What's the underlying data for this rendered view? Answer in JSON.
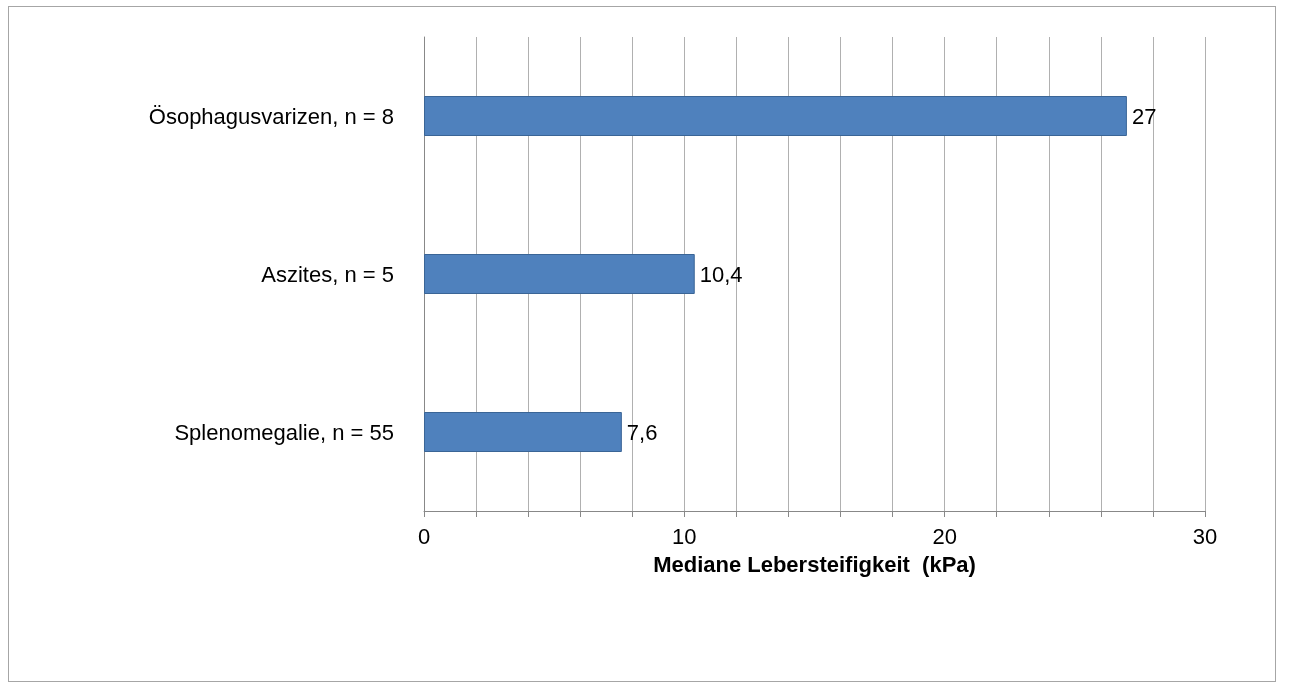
{
  "chart_data": {
    "type": "bar",
    "orientation": "horizontal",
    "categories": [
      "Ösophagusvarizen, n = 8",
      "Aszites, n = 5",
      "Splenomegalie, n = 55"
    ],
    "values": [
      27,
      10.4,
      7.6
    ],
    "value_labels": [
      "27",
      "10,4",
      "7,6"
    ],
    "color": "#4f81bd",
    "xlabel": "Mediane Lebersteifigkeit  (kPa)",
    "xlim": [
      0,
      30
    ],
    "xticks": [
      0,
      {
        "value": 2,
        "label": null
      },
      {
        "value": 4,
        "label": null
      },
      {
        "value": 6,
        "label": null
      },
      {
        "value": 8,
        "label": null
      },
      10,
      {
        "value": 12,
        "label": null
      },
      {
        "value": 14,
        "label": null
      },
      {
        "value": 16,
        "label": null
      },
      {
        "value": 18,
        "label": null
      },
      20,
      {
        "value": 22,
        "label": null
      },
      {
        "value": 24,
        "label": null
      },
      {
        "value": 26,
        "label": null
      },
      {
        "value": 28,
        "label": null
      },
      30
    ],
    "grid": "x"
  }
}
